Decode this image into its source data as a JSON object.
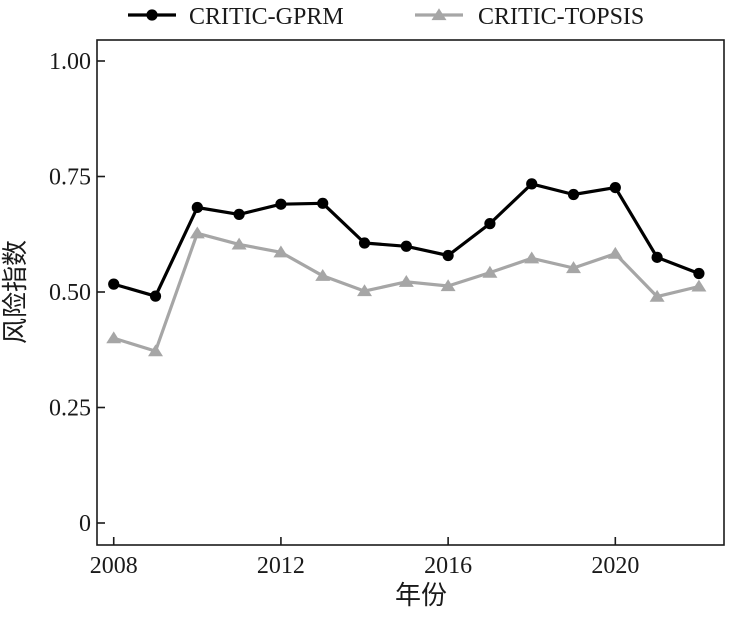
{
  "chart_data": {
    "type": "line",
    "title": "",
    "xlabel": "年份",
    "ylabel": "风险指数",
    "xlim": [
      2007.6,
      2022.6
    ],
    "ylim": [
      0,
      1.0
    ],
    "x_ticks": [
      2008,
      2012,
      2016,
      2020
    ],
    "x_tick_labels": [
      "2008",
      "2012",
      "2016",
      "2020"
    ],
    "y_ticks": [
      0,
      0.25,
      0.5,
      0.75,
      1.0
    ],
    "y_tick_labels": [
      "0",
      "0.25",
      "0.50",
      "0.75",
      "1.00"
    ],
    "grid": false,
    "legend_position": "top",
    "x": [
      2008,
      2009,
      2010,
      2011,
      2012,
      2013,
      2014,
      2015,
      2016,
      2017,
      2018,
      2019,
      2020,
      2021,
      2022
    ],
    "series": [
      {
        "name": "CRITIC-GPRM",
        "color": "#000000",
        "marker": "circle",
        "values": [
          0.517,
          0.491,
          0.683,
          0.668,
          0.69,
          0.692,
          0.606,
          0.599,
          0.579,
          0.648,
          0.734,
          0.711,
          0.726,
          0.575,
          0.54
        ]
      },
      {
        "name": "CRITIC-TOPSIS",
        "color": "#a6a6a6",
        "marker": "triangle",
        "values": [
          0.4,
          0.372,
          0.627,
          0.603,
          0.586,
          0.535,
          0.502,
          0.522,
          0.513,
          0.542,
          0.573,
          0.552,
          0.583,
          0.49,
          0.512
        ]
      }
    ]
  }
}
